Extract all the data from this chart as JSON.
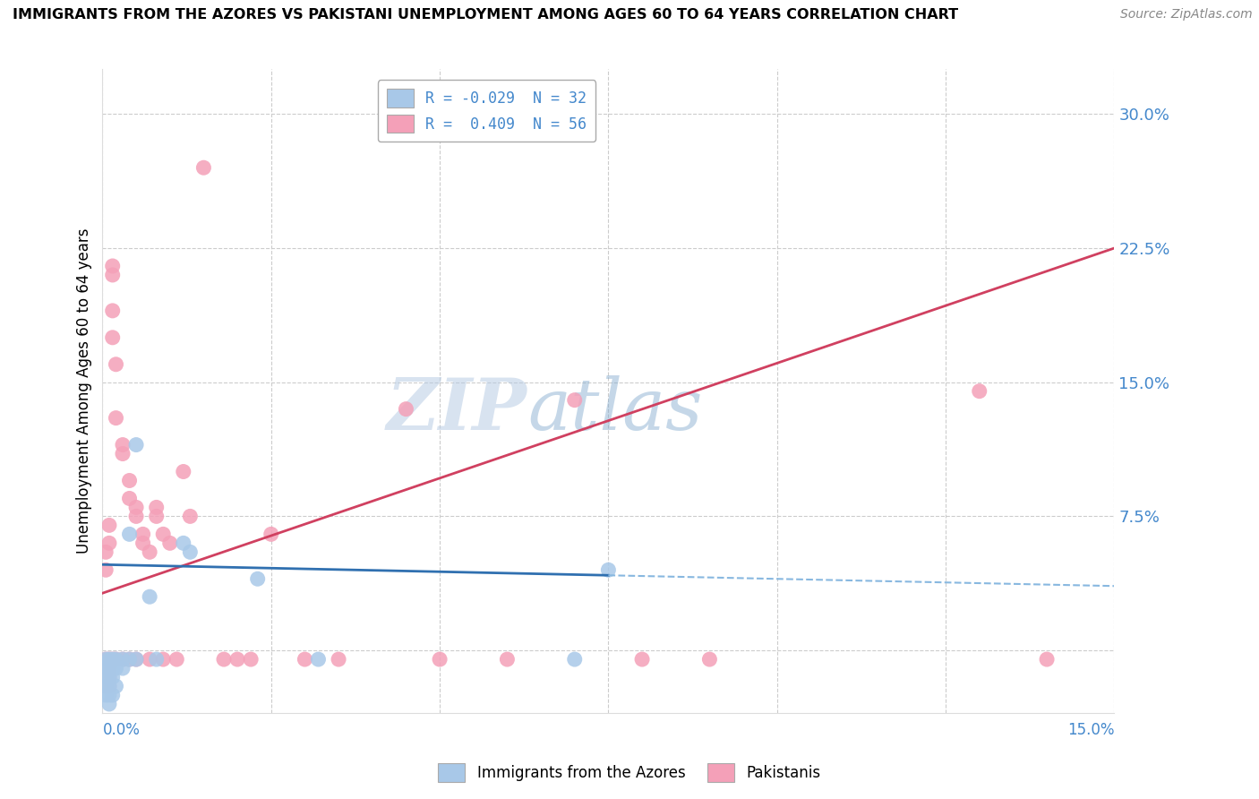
{
  "title": "IMMIGRANTS FROM THE AZORES VS PAKISTANI UNEMPLOYMENT AMONG AGES 60 TO 64 YEARS CORRELATION CHART",
  "source": "Source: ZipAtlas.com",
  "ylabel": "Unemployment Among Ages 60 to 64 years",
  "ytick_values": [
    0.0,
    0.075,
    0.15,
    0.225,
    0.3
  ],
  "xlim": [
    0.0,
    0.15
  ],
  "ylim": [
    -0.035,
    0.325
  ],
  "color_blue": "#a8c8e8",
  "color_pink": "#f4a0b8",
  "line_blue_solid": "#3070b0",
  "line_blue_dashed": "#88b8e0",
  "line_pink": "#d04060",
  "watermark_zip": "ZIP",
  "watermark_atlas": "atlas",
  "legend_label1": "Immigrants from the Azores",
  "legend_label2": "Pakistanis",
  "legend_r1": "R = -0.029  N = 32",
  "legend_r2": "R =  0.409  N = 56",
  "azores_x": [
    0.0005,
    0.0005,
    0.0005,
    0.0005,
    0.0005,
    0.001,
    0.001,
    0.001,
    0.001,
    0.001,
    0.001,
    0.0015,
    0.0015,
    0.0015,
    0.0015,
    0.002,
    0.002,
    0.002,
    0.003,
    0.003,
    0.004,
    0.004,
    0.005,
    0.005,
    0.007,
    0.008,
    0.012,
    0.013,
    0.023,
    0.032,
    0.07,
    0.075
  ],
  "azores_y": [
    -0.005,
    -0.01,
    -0.015,
    -0.02,
    -0.025,
    -0.005,
    -0.01,
    -0.015,
    -0.02,
    -0.025,
    -0.03,
    -0.005,
    -0.01,
    -0.015,
    -0.025,
    -0.005,
    -0.01,
    -0.02,
    -0.005,
    -0.01,
    0.065,
    -0.005,
    -0.005,
    0.115,
    0.03,
    -0.005,
    0.06,
    0.055,
    0.04,
    -0.005,
    -0.005,
    0.045
  ],
  "pak_x": [
    0.0005,
    0.0005,
    0.0005,
    0.0005,
    0.0005,
    0.0005,
    0.001,
    0.001,
    0.001,
    0.001,
    0.001,
    0.001,
    0.0015,
    0.0015,
    0.0015,
    0.0015,
    0.0015,
    0.002,
    0.002,
    0.002,
    0.003,
    0.003,
    0.003,
    0.004,
    0.004,
    0.004,
    0.005,
    0.005,
    0.005,
    0.006,
    0.006,
    0.007,
    0.007,
    0.008,
    0.008,
    0.009,
    0.009,
    0.01,
    0.011,
    0.012,
    0.013,
    0.015,
    0.018,
    0.02,
    0.022,
    0.025,
    0.03,
    0.035,
    0.045,
    0.05,
    0.06,
    0.07,
    0.08,
    0.09,
    0.13,
    0.14
  ],
  "pak_y": [
    -0.005,
    -0.01,
    -0.015,
    -0.02,
    0.045,
    0.055,
    -0.005,
    -0.01,
    -0.015,
    -0.02,
    0.06,
    0.07,
    0.21,
    0.215,
    0.19,
    0.175,
    -0.005,
    0.16,
    0.13,
    -0.005,
    0.115,
    0.11,
    -0.005,
    0.095,
    0.085,
    -0.005,
    0.08,
    0.075,
    -0.005,
    0.065,
    0.06,
    0.055,
    -0.005,
    0.075,
    0.08,
    0.065,
    -0.005,
    0.06,
    -0.005,
    0.1,
    0.075,
    0.27,
    -0.005,
    -0.005,
    -0.005,
    0.065,
    -0.005,
    -0.005,
    0.135,
    -0.005,
    -0.005,
    0.14,
    -0.005,
    -0.005,
    0.145,
    -0.005
  ],
  "line_pink_x0": 0.0,
  "line_pink_y0": 0.032,
  "line_pink_x1": 0.15,
  "line_pink_y1": 0.225,
  "line_blue_solid_x0": 0.0,
  "line_blue_solid_y0": 0.048,
  "line_blue_solid_x1": 0.075,
  "line_blue_solid_x1_val": 0.075,
  "line_blue_solid_y1": 0.042,
  "line_blue_dashed_x0": 0.075,
  "line_blue_dashed_y0": 0.042,
  "line_blue_dashed_x1": 0.15,
  "line_blue_dashed_y1": 0.036
}
